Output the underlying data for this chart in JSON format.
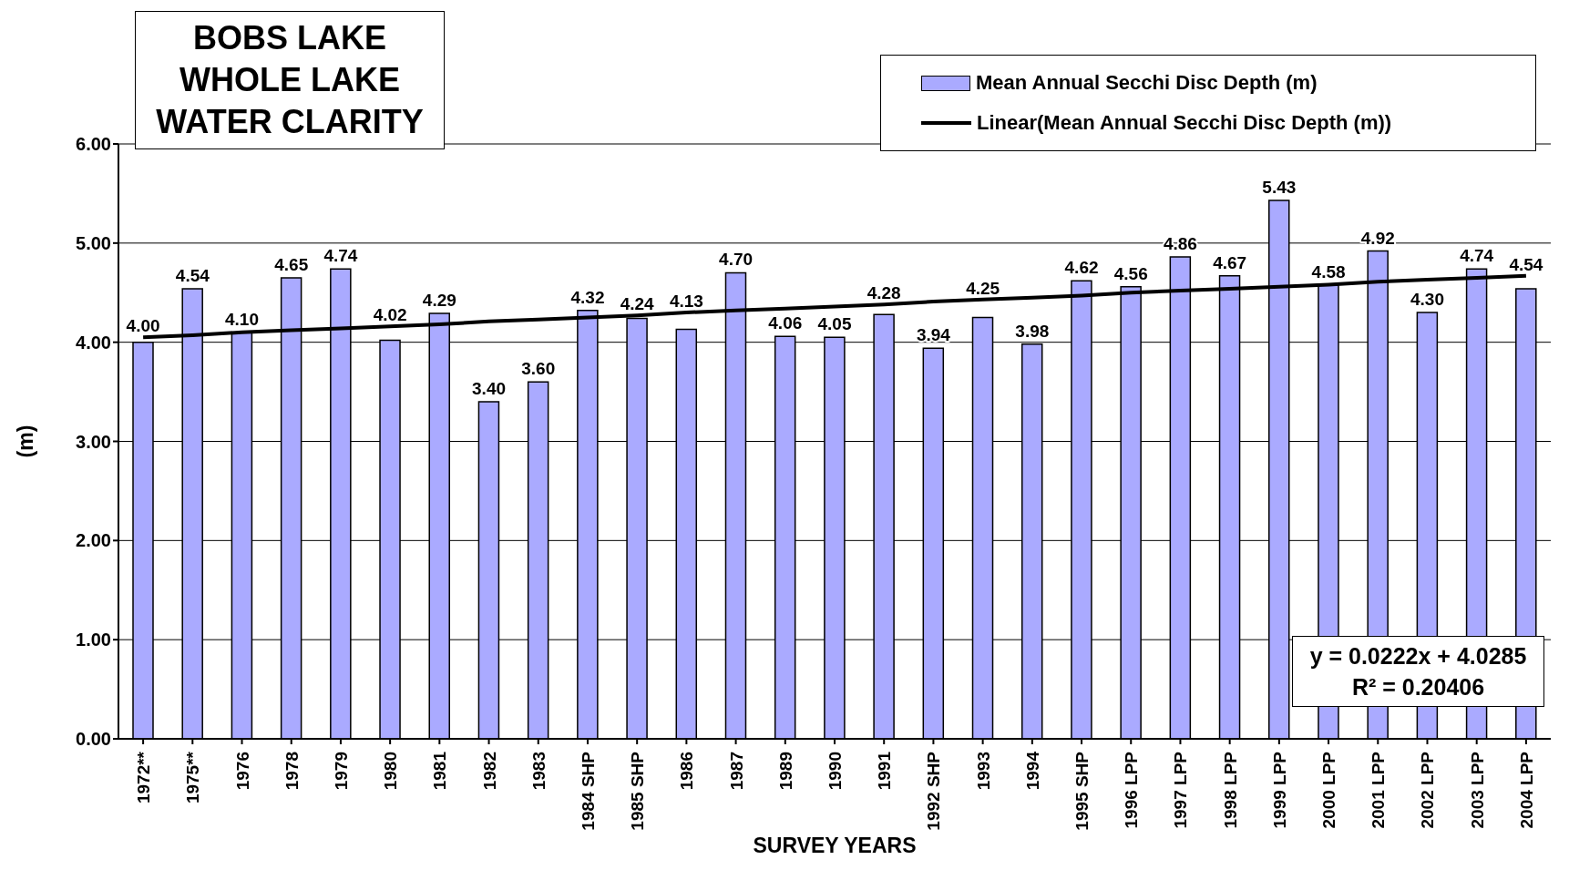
{
  "chart_data": {
    "type": "bar",
    "title": "BOBS LAKE WHOLE LAKE WATER CLARITY",
    "xlabel": "SURVEY YEARS",
    "ylabel": "(m)",
    "categories": [
      "1972**",
      "1975**",
      "1976",
      "1978",
      "1979",
      "1980",
      "1981",
      "1982",
      "1983",
      "1984 SHP",
      "1985 SHP",
      "1986",
      "1987",
      "1989",
      "1990",
      "1991",
      "1992 SHP",
      "1993",
      "1994",
      "1995 SHP",
      "1996 LPP",
      "1997 LPP",
      "1998 LPP",
      "1999 LPP",
      "2000 LPP",
      "2001 LPP",
      "2002 LPP",
      "2003 LPP",
      "2004 LPP"
    ],
    "series": [
      {
        "name": "Mean Annual Secchi Disc Depth (m)",
        "color": "#aaaaff",
        "values": [
          4.0,
          4.54,
          4.1,
          4.65,
          4.74,
          4.02,
          4.29,
          3.4,
          3.6,
          4.32,
          4.24,
          4.13,
          4.7,
          4.06,
          4.05,
          4.28,
          3.94,
          4.25,
          3.98,
          4.62,
          4.56,
          4.86,
          4.67,
          5.43,
          4.58,
          4.92,
          4.3,
          4.74,
          4.54
        ],
        "value_labels": [
          "4.00",
          "4.54",
          "4.10",
          "4.65",
          "4.74",
          "4.02",
          "4.29",
          "3.40",
          "3.60",
          "4.32",
          "4.24",
          "4.13",
          "4.70",
          "4.06",
          "4.05",
          "4.28",
          "3.94",
          "4.25",
          "3.98",
          "4.62",
          "4.56",
          "4.86",
          "4.67",
          "5.43",
          "4.58",
          "4.92",
          "4.30",
          "4.74",
          "4.54"
        ]
      },
      {
        "name": "Linear(Mean Annual Secchi Disc Depth (m))",
        "type": "line",
        "color": "#000000",
        "values": [
          4.05,
          4.07,
          4.1,
          4.12,
          4.14,
          4.16,
          4.18,
          4.21,
          4.23,
          4.25,
          4.27,
          4.3,
          4.32,
          4.34,
          4.36,
          4.38,
          4.41,
          4.43,
          4.45,
          4.47,
          4.5,
          4.52,
          4.54,
          4.56,
          4.58,
          4.61,
          4.63,
          4.65,
          4.67
        ]
      }
    ],
    "ylim": [
      0,
      6
    ],
    "yticks": [
      {
        "value": 0,
        "label": "0.00"
      },
      {
        "value": 1,
        "label": "1.00"
      },
      {
        "value": 2,
        "label": "2.00"
      },
      {
        "value": 3,
        "label": "3.00"
      },
      {
        "value": 4,
        "label": "4.00"
      },
      {
        "value": 5,
        "label": "5.00"
      },
      {
        "value": 6,
        "label": "6.00"
      }
    ],
    "grid": "y",
    "legend": "top right",
    "marker": "none",
    "line_style": "solid",
    "annotations": [
      "y = 0.0222x + 4.0285",
      "R² = 0.20406"
    ]
  }
}
